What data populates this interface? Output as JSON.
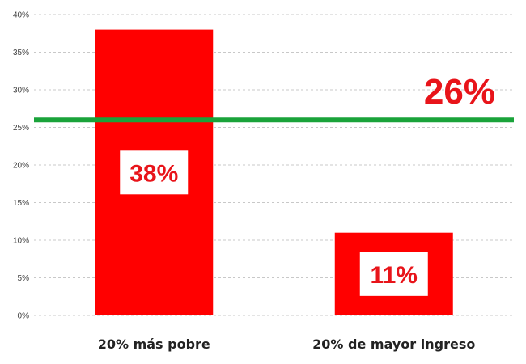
{
  "chart_data": {
    "type": "bar",
    "categories": [
      "20% más pobre",
      "20% de mayor ingreso"
    ],
    "values": [
      38,
      11
    ],
    "data_labels": [
      "38%",
      "11%"
    ],
    "reference_line": {
      "value": 26,
      "label": "26%",
      "color": "#1aa33a"
    },
    "ylim": [
      0,
      40
    ],
    "ytick_values": [
      0,
      5,
      10,
      15,
      20,
      25,
      30,
      35,
      40
    ],
    "ytick_labels": [
      "0%",
      "5%",
      "10%",
      "15%",
      "20%",
      "25%",
      "30%",
      "35%",
      "40%"
    ],
    "grid": true,
    "bar_color": "#ff0000",
    "label_box_color": "#ffffff",
    "label_text_color": "#e8141a"
  }
}
